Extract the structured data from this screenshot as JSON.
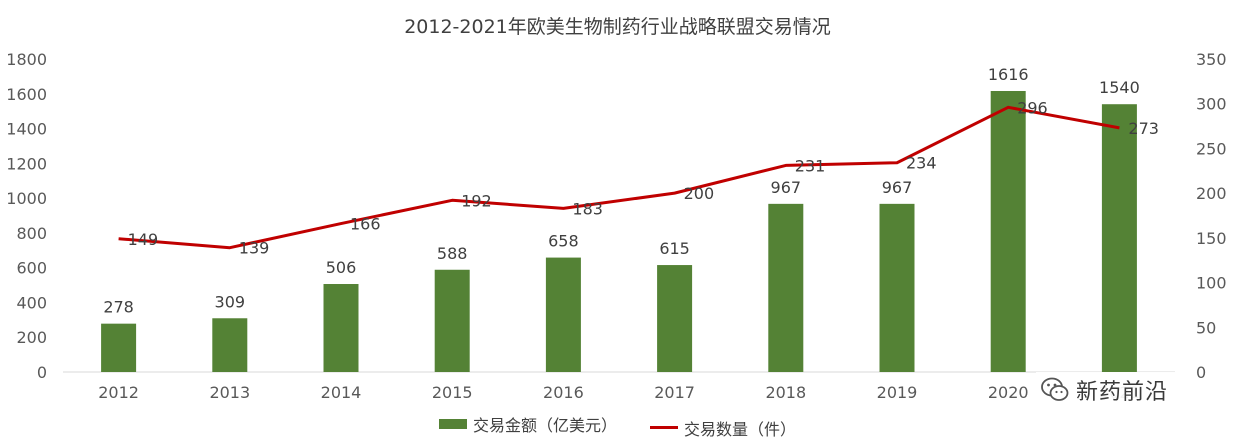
{
  "chart_data": {
    "type": "bar",
    "title": "2012-2021年欧美生物制药行业战略联盟交易情况",
    "categories": [
      "2012",
      "2013",
      "2014",
      "2015",
      "2016",
      "2017",
      "2018",
      "2019",
      "2020",
      "2021"
    ],
    "series": [
      {
        "name": "交易金额（亿美元）",
        "type": "bar",
        "axis": "left",
        "color": "#548235",
        "values": [
          278,
          309,
          506,
          588,
          658,
          615,
          967,
          967,
          1616,
          1540
        ]
      },
      {
        "name": "交易数量（件）",
        "type": "line",
        "axis": "right",
        "color": "#C00000",
        "values": [
          149,
          139,
          166,
          192,
          183,
          200,
          231,
          234,
          296,
          273
        ]
      }
    ],
    "ylim_left": [
      0,
      1800
    ],
    "yticks_left": [
      0,
      200,
      400,
      600,
      800,
      1000,
      1200,
      1400,
      1600,
      1800
    ],
    "ylim_right": [
      0,
      350
    ],
    "yticks_right": [
      0,
      50,
      100,
      150,
      200,
      250,
      300,
      350
    ],
    "grid": false,
    "legend_position": "bottom"
  },
  "watermark": {
    "text": "新药前沿",
    "icon": "wechat-icon"
  }
}
